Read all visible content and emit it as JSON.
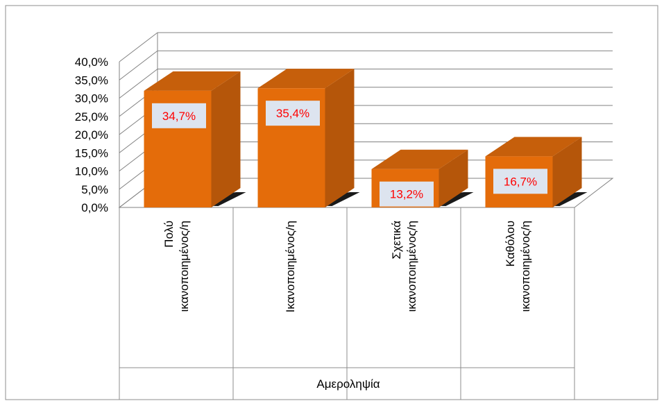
{
  "chart_data": {
    "type": "bar",
    "title": "",
    "xlabel": "Αμεροληψία",
    "ylabel": "",
    "ylim": [
      0,
      40
    ],
    "y_ticks": [
      "0,0%",
      "5,0%",
      "10,0%",
      "15,0%",
      "20,0%",
      "25,0%",
      "30,0%",
      "35,0%",
      "40,0%"
    ],
    "grid": true,
    "legend": "none",
    "categories": [
      [
        "Πολύ",
        "ικανοποιημένος/η"
      ],
      [
        "Ικανοποιημένος/η"
      ],
      [
        "Σχετικά",
        "ικανοποιημένος/η"
      ],
      [
        "Καθόλου",
        "ικανοποιημένος/η"
      ]
    ],
    "values": [
      34.7,
      35.4,
      13.2,
      16.7
    ],
    "data_labels": [
      "34,7%",
      "35,4%",
      "13,2%",
      "16,7%"
    ],
    "colors": {
      "bar_front": "#e46c0a",
      "bar_side": "#b5560a",
      "bar_top": "#c65f0b",
      "label_box": "#dde4ef",
      "label_text": "#ff0000",
      "grid": "#808080",
      "frame": "#8c8c8c"
    }
  }
}
